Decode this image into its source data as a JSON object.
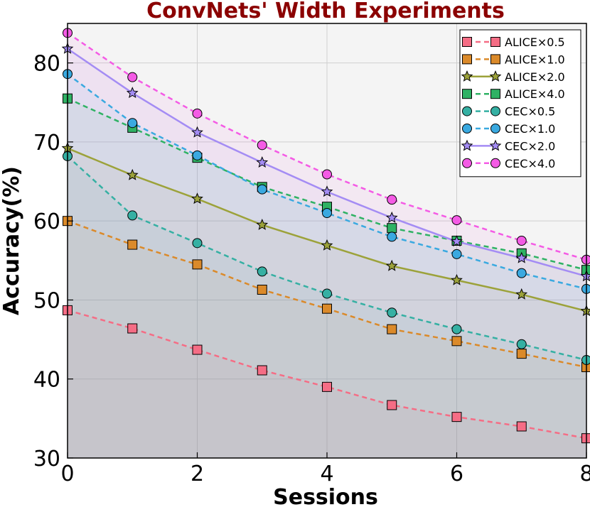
{
  "chart_data": {
    "type": "line",
    "title": "ConvNets' Width Experiments",
    "title_color": "#8b0000",
    "xlabel": "Sessions",
    "ylabel": "Accuracy(%)",
    "xlim": [
      0,
      8
    ],
    "ylim": [
      30,
      85
    ],
    "xticks": [
      0,
      2,
      4,
      6,
      8
    ],
    "yticks": [
      30,
      40,
      50,
      60,
      70,
      80
    ],
    "grid": true,
    "legend_position": "top-right",
    "x": [
      0,
      1,
      2,
      3,
      4,
      5,
      6,
      7,
      8
    ],
    "series": [
      {
        "name": "ALICE×0.5",
        "color": "#f56d85",
        "linestyle": "dashed",
        "marker": "square",
        "values": [
          48.7,
          46.4,
          43.7,
          41.1,
          39.0,
          36.7,
          35.2,
          34.0,
          32.5
        ]
      },
      {
        "name": "ALICE×1.0",
        "color": "#db8a2a",
        "linestyle": "dashed",
        "marker": "square",
        "values": [
          60.0,
          57.0,
          54.5,
          51.3,
          48.9,
          46.3,
          44.8,
          43.2,
          41.5
        ]
      },
      {
        "name": "ALICE×2.0",
        "color": "#9ca23a",
        "linestyle": "solid",
        "marker": "star",
        "values": [
          69.2,
          65.8,
          62.8,
          59.5,
          56.9,
          54.3,
          52.5,
          50.7,
          48.6
        ]
      },
      {
        "name": "ALICE×4.0",
        "color": "#2fb264",
        "linestyle": "dashed",
        "marker": "square",
        "values": [
          75.5,
          71.8,
          68.0,
          64.3,
          61.8,
          59.1,
          57.5,
          55.9,
          53.8
        ]
      },
      {
        "name": "CEC×0.5",
        "color": "#35b0a3",
        "linestyle": "dashed",
        "marker": "circle",
        "values": [
          68.2,
          60.7,
          57.2,
          53.6,
          50.8,
          48.4,
          46.3,
          44.4,
          42.4
        ]
      },
      {
        "name": "CEC×1.0",
        "color": "#3aa9e0",
        "linestyle": "dashed",
        "marker": "circle",
        "values": [
          78.6,
          72.4,
          68.3,
          64.0,
          61.0,
          58.0,
          55.8,
          53.4,
          51.4
        ]
      },
      {
        "name": "CEC×2.0",
        "color": "#a48cf4",
        "linestyle": "solid",
        "marker": "star",
        "values": [
          81.8,
          76.2,
          71.2,
          67.4,
          63.7,
          60.4,
          57.4,
          55.3,
          53.0
        ]
      },
      {
        "name": "CEC×4.0",
        "color": "#f45be5",
        "linestyle": "dashed",
        "marker": "circle",
        "values": [
          83.8,
          78.2,
          73.6,
          69.6,
          65.9,
          62.7,
          60.1,
          57.5,
          55.1
        ]
      }
    ]
  }
}
